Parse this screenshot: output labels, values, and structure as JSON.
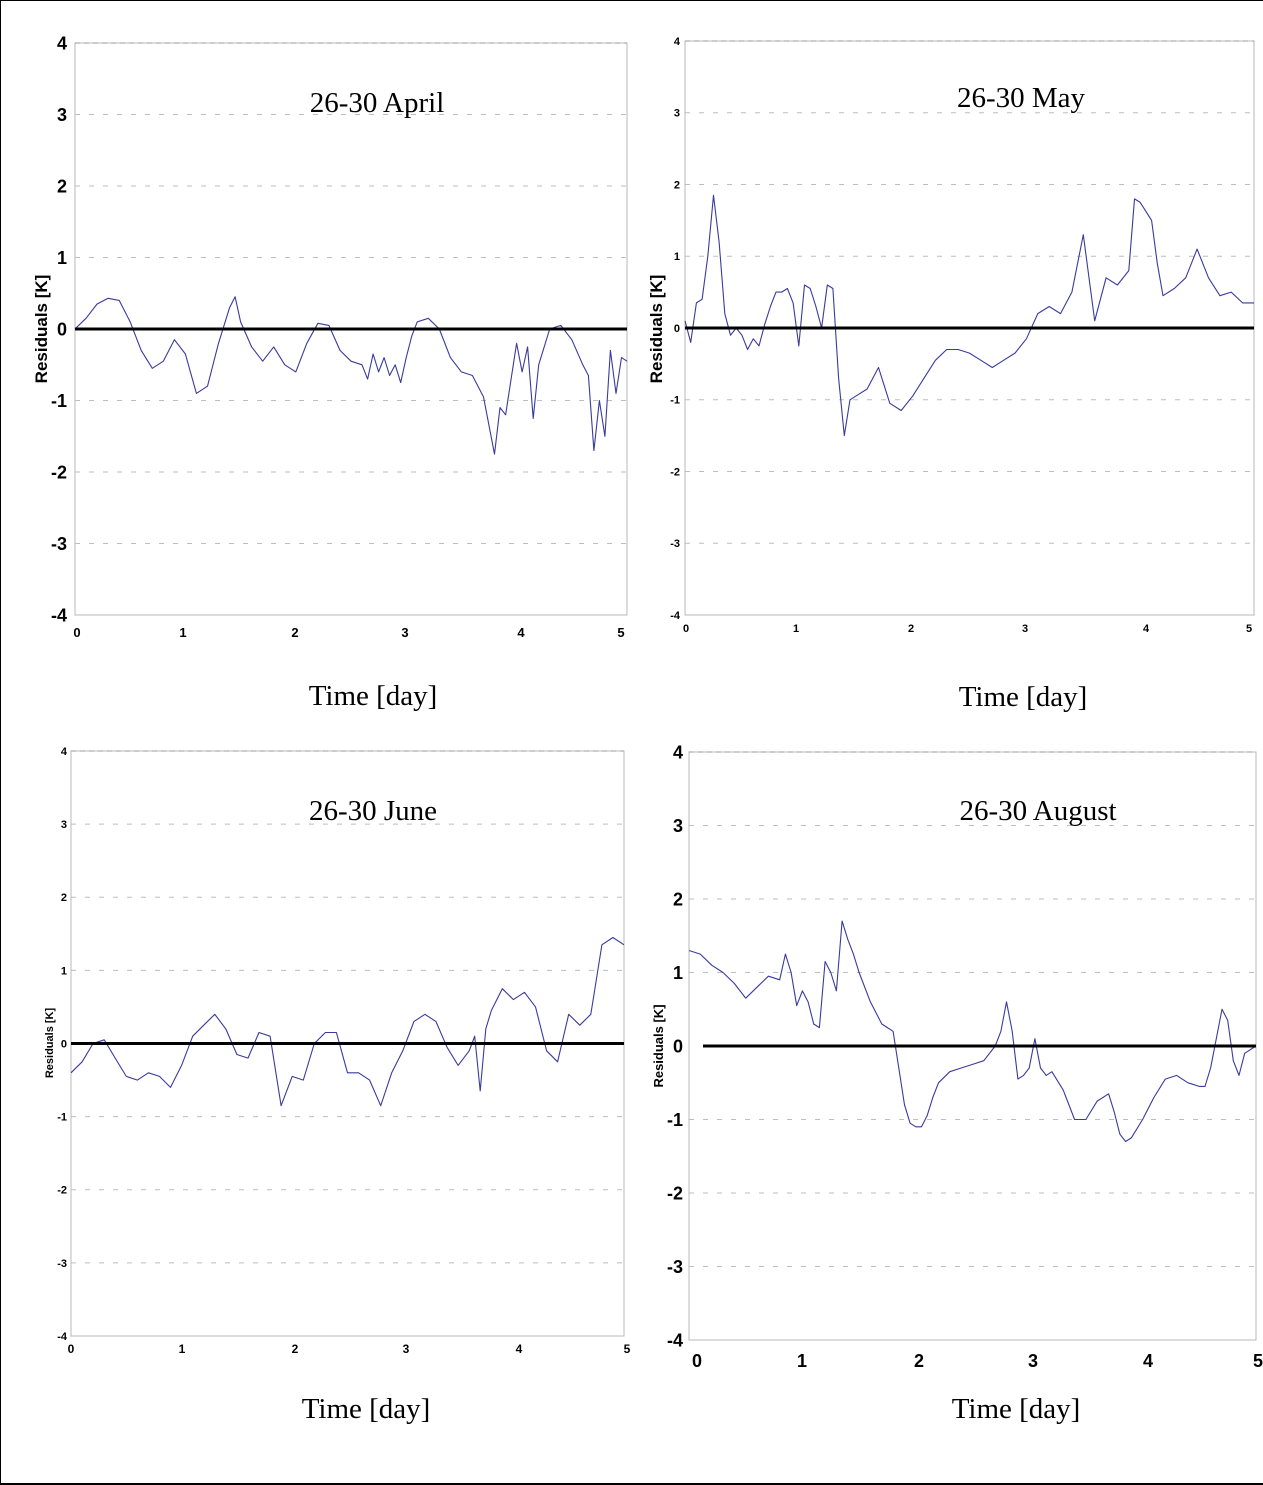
{
  "chart_data": [
    {
      "type": "line",
      "title": "26-30 April",
      "xlabel": "Time [day]",
      "ylabel": "Residuals [K]",
      "xlim": [
        0,
        5
      ],
      "ylim": [
        -4,
        4
      ],
      "xticks": [
        "0",
        "1",
        "2",
        "3",
        "4",
        "5"
      ],
      "yticks": [
        "4",
        "3",
        "2",
        "1",
        "0",
        "-1",
        "-2",
        "-3",
        "-4"
      ],
      "grid": "horizontal dashed",
      "reference_line_y": 0,
      "series": [
        {
          "color": "#3a3a9e",
          "x": [
            0,
            0.1,
            0.2,
            0.3,
            0.4,
            0.5,
            0.6,
            0.7,
            0.8,
            0.9,
            1.0,
            1.1,
            1.2,
            1.3,
            1.4,
            1.45,
            1.5,
            1.6,
            1.7,
            1.8,
            1.9,
            2.0,
            2.1,
            2.2,
            2.3,
            2.4,
            2.5,
            2.6,
            2.65,
            2.7,
            2.75,
            2.8,
            2.85,
            2.9,
            2.95,
            3.0,
            3.05,
            3.1,
            3.2,
            3.3,
            3.4,
            3.5,
            3.6,
            3.7,
            3.8,
            3.85,
            3.9,
            4.0,
            4.05,
            4.1,
            4.15,
            4.2,
            4.3,
            4.4,
            4.5,
            4.6,
            4.65,
            4.7,
            4.75,
            4.8,
            4.85,
            4.9,
            4.95,
            5.0
          ],
          "y": [
            0.0,
            0.15,
            0.35,
            0.43,
            0.4,
            0.1,
            -0.3,
            -0.55,
            -0.45,
            -0.15,
            -0.35,
            -0.9,
            -0.8,
            -0.2,
            0.3,
            0.45,
            0.1,
            -0.25,
            -0.45,
            -0.25,
            -0.5,
            -0.6,
            -0.2,
            0.08,
            0.05,
            -0.3,
            -0.45,
            -0.5,
            -0.7,
            -0.35,
            -0.6,
            -0.4,
            -0.65,
            -0.5,
            -0.75,
            -0.4,
            -0.1,
            0.1,
            0.15,
            0.0,
            -0.4,
            -0.6,
            -0.65,
            -0.95,
            -1.75,
            -1.1,
            -1.2,
            -0.2,
            -0.6,
            -0.25,
            -1.25,
            -0.5,
            0.0,
            0.05,
            -0.15,
            -0.5,
            -0.65,
            -1.7,
            -1.0,
            -1.5,
            -0.3,
            -0.9,
            -0.4,
            -0.45
          ]
        }
      ]
    },
    {
      "type": "line",
      "title": "26-30 May",
      "xlabel": "Time [day]",
      "ylabel": "Residuals [K]",
      "xlim": [
        0,
        5
      ],
      "ylim": [
        -4,
        4
      ],
      "xticks": [
        "0",
        "1",
        "2",
        "3",
        "4",
        "5"
      ],
      "yticks": [
        "4",
        "3",
        "2",
        "1",
        "0",
        "-1",
        "-2",
        "-3",
        "-4"
      ],
      "grid": "horizontal dashed",
      "reference_line_y": 0,
      "series": [
        {
          "color": "#3a3a9e",
          "x": [
            0,
            0.05,
            0.1,
            0.15,
            0.2,
            0.25,
            0.3,
            0.35,
            0.4,
            0.45,
            0.5,
            0.55,
            0.6,
            0.65,
            0.7,
            0.75,
            0.8,
            0.85,
            0.9,
            0.95,
            1.0,
            1.05,
            1.1,
            1.15,
            1.2,
            1.25,
            1.3,
            1.35,
            1.4,
            1.45,
            1.5,
            1.6,
            1.7,
            1.8,
            1.9,
            2.0,
            2.1,
            2.2,
            2.3,
            2.4,
            2.5,
            2.6,
            2.7,
            2.8,
            2.9,
            3.0,
            3.1,
            3.2,
            3.3,
            3.4,
            3.5,
            3.55,
            3.6,
            3.7,
            3.8,
            3.9,
            3.95,
            4.0,
            4.1,
            4.15,
            4.2,
            4.3,
            4.4,
            4.5,
            4.6,
            4.7,
            4.8,
            4.9,
            5.0
          ],
          "y": [
            0.1,
            -0.2,
            0.35,
            0.4,
            1.0,
            1.85,
            1.2,
            0.2,
            -0.1,
            0.0,
            -0.1,
            -0.3,
            -0.15,
            -0.25,
            0.05,
            0.3,
            0.5,
            0.5,
            0.55,
            0.35,
            -0.25,
            0.6,
            0.55,
            0.3,
            0.0,
            0.6,
            0.55,
            -0.7,
            -1.5,
            -1.0,
            -0.95,
            -0.85,
            -0.55,
            -1.05,
            -1.15,
            -0.95,
            -0.7,
            -0.45,
            -0.3,
            -0.3,
            -0.35,
            -0.45,
            -0.55,
            -0.45,
            -0.35,
            -0.15,
            0.2,
            0.3,
            0.2,
            0.5,
            1.3,
            0.7,
            0.1,
            0.7,
            0.6,
            0.8,
            1.8,
            1.75,
            1.5,
            0.9,
            0.45,
            0.55,
            0.7,
            1.1,
            0.7,
            0.45,
            0.5,
            0.35,
            0.35
          ]
        }
      ]
    },
    {
      "type": "line",
      "title": "26-30 June",
      "xlabel": "Time [day]",
      "ylabel": "Residuals [K]",
      "xlim": [
        0,
        5
      ],
      "ylim": [
        -4,
        4
      ],
      "xticks": [
        "0",
        "1",
        "2",
        "3",
        "4",
        "5"
      ],
      "yticks": [
        "4",
        "3",
        "2",
        "1",
        "0",
        "-1",
        "-2",
        "-3",
        "-4"
      ],
      "grid": "horizontal dashed",
      "reference_line_y": 0,
      "series": [
        {
          "color": "#3a3a9e",
          "x": [
            0,
            0.1,
            0.2,
            0.3,
            0.4,
            0.5,
            0.6,
            0.7,
            0.8,
            0.9,
            1.0,
            1.1,
            1.2,
            1.3,
            1.4,
            1.5,
            1.6,
            1.7,
            1.8,
            1.9,
            2.0,
            2.1,
            2.2,
            2.3,
            2.4,
            2.5,
            2.6,
            2.7,
            2.8,
            2.9,
            3.0,
            3.1,
            3.2,
            3.3,
            3.4,
            3.5,
            3.6,
            3.65,
            3.7,
            3.75,
            3.8,
            3.9,
            4.0,
            4.1,
            4.2,
            4.3,
            4.4,
            4.5,
            4.6,
            4.7,
            4.8,
            4.9,
            5.0
          ],
          "y": [
            -0.4,
            -0.25,
            0.0,
            0.05,
            -0.2,
            -0.45,
            -0.5,
            -0.4,
            -0.45,
            -0.6,
            -0.3,
            0.1,
            0.25,
            0.4,
            0.2,
            -0.15,
            -0.2,
            0.15,
            0.1,
            -0.85,
            -0.45,
            -0.5,
            0.0,
            0.15,
            0.15,
            -0.4,
            -0.4,
            -0.5,
            -0.85,
            -0.4,
            -0.1,
            0.3,
            0.4,
            0.3,
            -0.05,
            -0.3,
            -0.1,
            0.1,
            -0.65,
            0.2,
            0.45,
            0.75,
            0.6,
            0.7,
            0.5,
            -0.1,
            -0.25,
            0.4,
            0.25,
            0.4,
            1.35,
            1.45,
            1.35
          ]
        }
      ]
    },
    {
      "type": "line",
      "title": "26-30 August",
      "xlabel": "Time [day]",
      "ylabel": "Residuals [K]",
      "xlim": [
        0,
        5
      ],
      "ylim": [
        -4,
        4
      ],
      "xticks": [
        "0",
        "1",
        "2",
        "3",
        "4",
        "5"
      ],
      "yticks": [
        "4",
        "3",
        "2",
        "1",
        "0",
        "-1",
        "-2",
        "-3",
        "-4"
      ],
      "grid": "horizontal dashed",
      "reference_line_y": 0,
      "series": [
        {
          "color": "#3a3a9e",
          "x": [
            0,
            0.1,
            0.2,
            0.3,
            0.4,
            0.5,
            0.6,
            0.7,
            0.8,
            0.85,
            0.9,
            0.95,
            1.0,
            1.05,
            1.1,
            1.15,
            1.2,
            1.25,
            1.3,
            1.35,
            1.4,
            1.45,
            1.5,
            1.6,
            1.7,
            1.8,
            1.9,
            1.95,
            2.0,
            2.05,
            2.1,
            2.15,
            2.2,
            2.3,
            2.4,
            2.5,
            2.6,
            2.7,
            2.75,
            2.8,
            2.85,
            2.9,
            2.95,
            3.0,
            3.05,
            3.1,
            3.15,
            3.2,
            3.3,
            3.4,
            3.5,
            3.6,
            3.7,
            3.75,
            3.8,
            3.85,
            3.9,
            4.0,
            4.1,
            4.2,
            4.3,
            4.4,
            4.5,
            4.55,
            4.6,
            4.65,
            4.7,
            4.75,
            4.8,
            4.85,
            4.9,
            5.0
          ],
          "y": [
            1.3,
            1.25,
            1.1,
            1.0,
            0.85,
            0.65,
            0.8,
            0.95,
            0.9,
            1.25,
            1.0,
            0.55,
            0.75,
            0.6,
            0.3,
            0.25,
            1.15,
            1.0,
            0.75,
            1.7,
            1.45,
            1.25,
            1.0,
            0.6,
            0.3,
            0.2,
            -0.8,
            -1.05,
            -1.1,
            -1.1,
            -0.95,
            -0.7,
            -0.5,
            -0.35,
            -0.3,
            -0.25,
            -0.2,
            0.0,
            0.2,
            0.6,
            0.2,
            -0.45,
            -0.4,
            -0.3,
            0.1,
            -0.3,
            -0.4,
            -0.35,
            -0.6,
            -1.0,
            -1.0,
            -0.75,
            -0.65,
            -0.9,
            -1.2,
            -1.3,
            -1.25,
            -1.0,
            -0.7,
            -0.45,
            -0.4,
            -0.5,
            -0.55,
            -0.55,
            -0.3,
            0.1,
            0.5,
            0.35,
            -0.2,
            -0.4,
            -0.1,
            0.0
          ]
        }
      ]
    }
  ]
}
